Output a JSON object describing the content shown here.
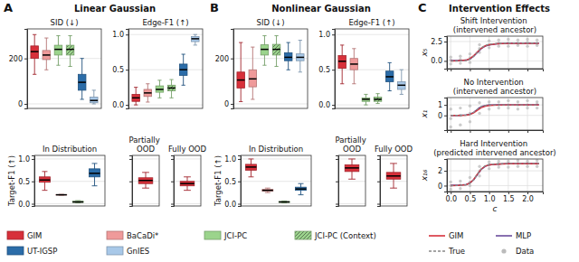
{
  "panels": [
    {
      "label": "A",
      "title": "Linear Gaussian"
    },
    {
      "label": "B",
      "title": "Nonlinear Gaussian"
    },
    {
      "label": "C",
      "title": "Intervention Effects"
    }
  ],
  "legends": [
    {
      "entries": [
        {
          "name": "GIM",
          "color": "#d7303a"
        },
        {
          "name": "BaCaDi*",
          "color": "#ef9a9a"
        },
        {
          "name": "JCI-PC",
          "color": "#9bd48c"
        },
        {
          "name": "JCI-PC (Context)",
          "color": "#9bd48c",
          "marker": "hatch"
        },
        {
          "name": "UT-IGSP",
          "color": "#2b6ca8"
        },
        {
          "name": "GnIES",
          "color": "#a8c8e8"
        }
      ]
    },
    {
      "entries": [
        {
          "name": "GIM",
          "color": "#d7303a",
          "type": "line",
          "line_style": "solid"
        },
        {
          "name": "MLP",
          "color": "#6a4c9c",
          "type": "line",
          "line_style": "solid"
        },
        {
          "name": "True",
          "color": "#888888",
          "type": "line",
          "line_style": "dashed"
        },
        {
          "name": "Data",
          "color": "#bbbbbb",
          "type": "scatter",
          "marker": "circle"
        }
      ]
    }
  ],
  "chart_data": [
    {
      "type": "box",
      "title": "SID (↓)",
      "ylim": [
        -20,
        330
      ],
      "yticks": [
        0,
        200
      ],
      "grid": true,
      "tick_labels": "y",
      "series": [
        {
          "color": "#d7303a",
          "values": [
            130,
            200,
            230,
            255,
            305
          ]
        },
        {
          "color": "#ef9a9a",
          "values": [
            150,
            195,
            215,
            235,
            290
          ]
        },
        {
          "color": "#9bd48c",
          "values": [
            170,
            215,
            240,
            258,
            300
          ]
        },
        {
          "color": "#9bd48c",
          "marker": "hatch",
          "values": [
            165,
            215,
            240,
            258,
            300
          ]
        },
        {
          "color": "#2b6ca8",
          "values": [
            20,
            60,
            95,
            130,
            200
          ]
        },
        {
          "color": "#a8c8e8",
          "values": [
            0,
            5,
            15,
            30,
            60
          ]
        }
      ]
    },
    {
      "type": "box",
      "title": "Edge-F1 (↑)",
      "ylim": [
        -0.05,
        1.08
      ],
      "yticks": [
        {
          "value": 0,
          "label": "0.0"
        },
        0.5,
        {
          "value": 1,
          "label": "1.0"
        }
      ],
      "grid": true,
      "tick_labels": "y",
      "series": [
        {
          "color": "#d7303a",
          "values": [
            0,
            0.05,
            0.1,
            0.15,
            0.25
          ]
        },
        {
          "color": "#ef9a9a",
          "values": [
            0.04,
            0.12,
            0.17,
            0.22,
            0.3
          ]
        },
        {
          "color": "#9bd48c",
          "values": [
            0.1,
            0.18,
            0.22,
            0.27,
            0.35
          ]
        },
        {
          "color": "#9bd48c",
          "marker": "hatch",
          "values": [
            0.1,
            0.2,
            0.24,
            0.28,
            0.36
          ]
        },
        {
          "color": "#2b6ca8",
          "values": [
            0.28,
            0.42,
            0.5,
            0.58,
            0.72
          ]
        },
        {
          "color": "#a8c8e8",
          "values": [
            0.85,
            0.9,
            0.94,
            0.97,
            1.0
          ]
        }
      ]
    },
    {
      "type": "box",
      "title": "In Distribution",
      "ylabel": "Target-F1 (↑)",
      "ylim": [
        -0.05,
        1.08
      ],
      "yticks": [
        {
          "value": 0,
          "label": "0.0"
        },
        0.5,
        {
          "value": 1,
          "label": "1.0"
        }
      ],
      "grid": true,
      "tick_labels": "y",
      "series": [
        {
          "color": "#d7303a",
          "values": [
            0.3,
            0.48,
            0.53,
            0.6,
            0.72
          ]
        },
        {
          "color": "#ef9a9a",
          "values": [
            0.19,
            0.195,
            0.2,
            0.205,
            0.21
          ]
        },
        {
          "color": "#9bd48c",
          "values": [
            0.02,
            0.03,
            0.04,
            0.055,
            0.07
          ]
        },
        {
          "color": "#2b6ca8",
          "values": [
            0.4,
            0.6,
            0.68,
            0.78,
            0.9
          ]
        }
      ]
    },
    {
      "type": "box",
      "title": "Partially OOD",
      "ylim": [
        -0.05,
        1.08
      ],
      "yticks": [
        0,
        0.5,
        1
      ],
      "grid": true,
      "tick_labels": false,
      "series": [
        {
          "color": "#d7303a",
          "values": [
            0.35,
            0.45,
            0.52,
            0.58,
            0.7
          ]
        }
      ]
    },
    {
      "type": "box",
      "title": "Fully OOD",
      "ylim": [
        -0.05,
        1.08
      ],
      "yticks": [
        0,
        0.5,
        1
      ],
      "grid": true,
      "tick_labels": false,
      "series": [
        {
          "color": "#d7303a",
          "values": [
            0.3,
            0.4,
            0.45,
            0.5,
            0.6
          ]
        }
      ]
    },
    {
      "type": "box",
      "title": "SID (↓)",
      "ylim": [
        -20,
        330
      ],
      "yticks": [
        0,
        200
      ],
      "grid": true,
      "tick_labels": "y",
      "series": [
        {
          "color": "#d7303a",
          "values": [
            10,
            70,
            105,
            140,
            270
          ]
        },
        {
          "color": "#ef9a9a",
          "values": [
            20,
            75,
            110,
            150,
            250
          ]
        },
        {
          "color": "#9bd48c",
          "values": [
            170,
            215,
            240,
            260,
            300
          ]
        },
        {
          "color": "#9bd48c",
          "marker": "hatch",
          "values": [
            165,
            215,
            240,
            262,
            300
          ]
        },
        {
          "color": "#2b6ca8",
          "values": [
            150,
            190,
            205,
            225,
            270
          ]
        },
        {
          "color": "#a8c8e8",
          "values": [
            140,
            190,
            205,
            220,
            280
          ]
        }
      ]
    },
    {
      "type": "box",
      "title": "Edge-F1 (↑)",
      "ylim": [
        -0.05,
        1.08
      ],
      "yticks": [
        {
          "value": 0,
          "label": "0.0"
        },
        0.5,
        {
          "value": 1,
          "label": "1.0"
        }
      ],
      "grid": true,
      "tick_labels": "y",
      "series": [
        {
          "color": "#d7303a",
          "values": [
            0.3,
            0.52,
            0.62,
            0.7,
            0.85
          ]
        },
        {
          "color": "#ef9a9a",
          "values": [
            0.3,
            0.5,
            0.58,
            0.66,
            0.8
          ]
        },
        {
          "color": "#9bd48c",
          "values": [
            0,
            0.05,
            0.08,
            0.1,
            0.15
          ]
        },
        {
          "color": "#9bd48c",
          "marker": "hatch",
          "values": [
            0.02,
            0.05,
            0.08,
            0.11,
            0.16
          ]
        },
        {
          "color": "#2b6ca8",
          "values": [
            0.2,
            0.33,
            0.4,
            0.48,
            0.6
          ]
        },
        {
          "color": "#a8c8e8",
          "values": [
            0.15,
            0.22,
            0.28,
            0.33,
            0.5
          ]
        }
      ]
    },
    {
      "type": "box",
      "title": "In Distribution",
      "ylabel": "Target-F1 (↑)",
      "ylim": [
        -0.05,
        1.08
      ],
      "yticks": [
        {
          "value": 0,
          "label": "0.0"
        },
        0.5,
        {
          "value": 1,
          "label": "1.0"
        }
      ],
      "grid": true,
      "tick_labels": "y",
      "series": [
        {
          "color": "#d7303a",
          "values": [
            0.6,
            0.75,
            0.82,
            0.88,
            1.0
          ]
        },
        {
          "color": "#ef9a9a",
          "values": [
            0.25,
            0.28,
            0.3,
            0.32,
            0.35
          ]
        },
        {
          "color": "#9bd48c",
          "values": [
            0.02,
            0.03,
            0.04,
            0.05,
            0.06
          ]
        },
        {
          "color": "#2b6ca8",
          "values": [
            0.2,
            0.3,
            0.33,
            0.37,
            0.45
          ]
        }
      ]
    },
    {
      "type": "box",
      "title": "Partially OOD",
      "ylim": [
        -0.05,
        1.08
      ],
      "yticks": [
        0,
        0.5,
        1
      ],
      "grid": true,
      "tick_labels": false,
      "series": [
        {
          "color": "#d7303a",
          "values": [
            0.55,
            0.72,
            0.8,
            0.87,
            1.0
          ]
        }
      ]
    },
    {
      "type": "box",
      "title": "Fully OOD",
      "ylim": [
        -0.05,
        1.08
      ],
      "yticks": [
        0,
        0.5,
        1
      ],
      "grid": true,
      "tick_labels": false,
      "series": [
        {
          "color": "#d7303a",
          "values": [
            0.35,
            0.55,
            0.62,
            0.7,
            0.9
          ]
        }
      ]
    },
    {
      "type": "line",
      "title": "Shift Intervention (intervened ancestor)",
      "ylabel": "x₅",
      "xlim": [
        -0.1,
        2.4
      ],
      "xticks": [
        0,
        0.5,
        1,
        1.5,
        2
      ],
      "ylim": [
        -1,
        3.2
      ],
      "yticks": [
        {
          "value": 0,
          "label": "0.0"
        },
        2.5
      ],
      "grid": true,
      "tick_labels": "y",
      "x": [
        0,
        0.2,
        0.4,
        0.5,
        0.6,
        0.7,
        0.8,
        0.9,
        1.0,
        1.2,
        1.5,
        1.8,
        2.1,
        2.3
      ],
      "series": [
        {
          "type": "scatter",
          "color": "#bbbbbb",
          "marker": "circle",
          "x": [
            0,
            0,
            0,
            0.25,
            0.25,
            0.25,
            0.5,
            0.5,
            0.5,
            0.75,
            0.75,
            0.75,
            1,
            1,
            1,
            1.25,
            1.25,
            1.25,
            1.5,
            1.5,
            1.5,
            1.75,
            1.75,
            1.75,
            2,
            2,
            2,
            2.25,
            2.25,
            2.25
          ],
          "values": [
            -0.4,
            0.1,
            0.5,
            -0.3,
            0.2,
            0.6,
            -0.2,
            0.4,
            0.9,
            1.1,
            1.6,
            2.1,
            1.7,
            2.1,
            2.6,
            1.9,
            2.3,
            2.7,
            1.9,
            2.3,
            2.8,
            2.0,
            2.3,
            2.7,
            1.9,
            2.4,
            2.8,
            2.0,
            2.3,
            2.7
          ]
        },
        {
          "type": "line",
          "color": "#6a4c9c",
          "line_style": "solid",
          "values": [
            0.05,
            0.05,
            0.1,
            0.25,
            0.6,
            1.1,
            1.6,
            1.9,
            2.05,
            2.2,
            2.3,
            2.3,
            2.3,
            2.3
          ]
        },
        {
          "type": "line",
          "color": "#d7303a",
          "line_style": "solid",
          "values": [
            0,
            0.02,
            0.1,
            0.3,
            0.7,
            1.2,
            1.65,
            1.95,
            2.1,
            2.2,
            2.25,
            2.25,
            2.25,
            2.25
          ]
        },
        {
          "type": "line",
          "color": "#888888",
          "line_style": "dashed",
          "values": [
            0,
            0,
            0.05,
            0.2,
            0.6,
            1.2,
            1.7,
            2.0,
            2.15,
            2.25,
            2.3,
            2.3,
            2.3,
            2.3
          ]
        }
      ]
    },
    {
      "type": "line",
      "title": "No Intervention (intervened ancestor)",
      "ylabel": "x₁",
      "xlim": [
        -0.1,
        2.4
      ],
      "xticks": [
        0,
        0.5,
        1,
        1.5,
        2
      ],
      "ylim": [
        -1.4,
        1.7
      ],
      "yticks": [
        0,
        1
      ],
      "grid": true,
      "tick_labels": "y",
      "x": [
        0,
        0.2,
        0.4,
        0.5,
        0.6,
        0.7,
        0.8,
        0.9,
        1.0,
        1.2,
        1.5,
        1.8,
        2.1,
        2.3
      ],
      "series": [
        {
          "type": "scatter",
          "color": "#bbbbbb",
          "marker": "circle",
          "x": [
            0,
            0,
            0,
            0.25,
            0.25,
            0.25,
            0.5,
            0.5,
            0.5,
            0.75,
            0.75,
            0.75,
            1,
            1,
            1,
            1.25,
            1.25,
            1.25,
            1.5,
            1.5,
            1.5,
            1.75,
            1.75,
            1.75,
            2,
            2,
            2,
            2.25,
            2.25,
            2.25
          ],
          "values": [
            -1.1,
            -0.3,
            0.6,
            -0.9,
            0,
            0.7,
            -0.6,
            0.2,
            0.9,
            0.2,
            0.7,
            1.2,
            0.6,
            1,
            1.3,
            0.7,
            1,
            1.3,
            0.7,
            1,
            1.4,
            0.6,
            1,
            1.3,
            0.7,
            1,
            1.4,
            0.7,
            1.05,
            1.3
          ]
        },
        {
          "type": "line",
          "color": "#6a4c9c",
          "line_style": "solid",
          "values": [
            0,
            0,
            0.05,
            0.12,
            0.3,
            0.6,
            0.85,
            0.95,
            1.0,
            1.02,
            1.02,
            1.02,
            1.02,
            1.02
          ]
        },
        {
          "type": "line",
          "color": "#d7303a",
          "line_style": "solid",
          "values": [
            0,
            0,
            0.02,
            0.08,
            0.25,
            0.5,
            0.75,
            0.88,
            0.95,
            0.98,
            1.0,
            1.0,
            1.0,
            1.0
          ]
        },
        {
          "type": "line",
          "color": "#888888",
          "line_style": "dashed",
          "values": [
            0,
            0,
            0.03,
            0.1,
            0.3,
            0.6,
            0.85,
            0.95,
            1.0,
            1.0,
            1.0,
            1.0,
            1.0,
            1.0
          ]
        }
      ]
    },
    {
      "type": "line",
      "title": "Hard Intervention (predicted intervened ancestor)",
      "ylabel": "x₁₆",
      "xlabel": "c",
      "xlim": [
        -0.1,
        2.4
      ],
      "xticks": [
        {
          "value": 0,
          "label": "0.0"
        },
        0.5,
        {
          "value": 1,
          "label": "1.0"
        },
        1.5,
        {
          "value": 2,
          "label": "2.0"
        }
      ],
      "ylim": [
        -0.8,
        3.6
      ],
      "yticks": [
        0,
        2
      ],
      "grid": true,
      "x": [
        0,
        0.2,
        0.4,
        0.5,
        0.6,
        0.7,
        0.8,
        0.9,
        1.0,
        1.2,
        1.5,
        1.8,
        2.1,
        2.3
      ],
      "series": [
        {
          "type": "scatter",
          "color": "#bbbbbb",
          "marker": "circle",
          "x": [
            0,
            0,
            0,
            0.25,
            0.25,
            0.25,
            0.5,
            0.5,
            0.5,
            0.75,
            0.75,
            0.75,
            1,
            1,
            1,
            1.25,
            1.25,
            1.25,
            1.5,
            1.5,
            1.5,
            1.75,
            1.75,
            1.75,
            2,
            2,
            2,
            2.25,
            2.25,
            2.25
          ],
          "values": [
            -0.5,
            0,
            0.5,
            -0.4,
            0.1,
            0.6,
            0,
            0.5,
            1.1,
            1.3,
            2,
            2.6,
            2.3,
            2.8,
            3.2,
            2.5,
            2.9,
            3.3,
            2.5,
            3,
            3.3,
            2.6,
            3,
            3.4,
            2.6,
            3,
            3.3,
            2.6,
            3,
            3.4
          ]
        },
        {
          "type": "line",
          "color": "#6a4c9c",
          "line_style": "solid",
          "values": [
            0.05,
            0.05,
            0.15,
            0.35,
            0.8,
            1.5,
            2.2,
            2.6,
            2.8,
            2.9,
            3,
            3,
            3,
            3
          ]
        },
        {
          "type": "line",
          "color": "#d7303a",
          "line_style": "solid",
          "values": [
            0,
            0.02,
            0.12,
            0.35,
            0.85,
            1.6,
            2.25,
            2.65,
            2.8,
            2.9,
            2.95,
            2.95,
            2.95,
            2.95
          ]
        },
        {
          "type": "line",
          "color": "#888888",
          "line_style": "dashed",
          "values": [
            0,
            0.02,
            0.1,
            0.3,
            0.8,
            1.6,
            2.3,
            2.7,
            2.85,
            2.95,
            3,
            3,
            3,
            3
          ]
        }
      ]
    }
  ]
}
